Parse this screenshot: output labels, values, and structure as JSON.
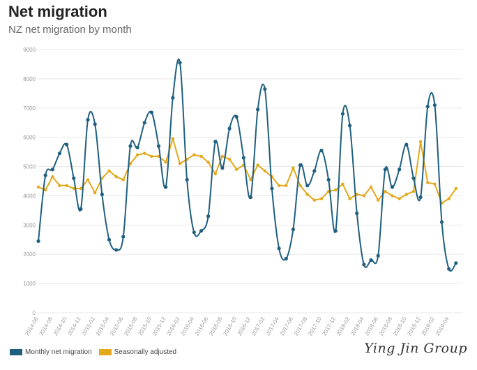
{
  "chart_data": {
    "type": "line",
    "title": "Net migration",
    "subtitle": "NZ net migration by month",
    "ylim": [
      0,
      9000
    ],
    "y_ticks": [
      0,
      1000,
      2000,
      3000,
      4000,
      5000,
      6000,
      7000,
      8000,
      9000
    ],
    "x_tick_labels": [
      "2014-06",
      "2014-08",
      "2014-10",
      "2014-12",
      "2015-02",
      "2015-04",
      "2015-06",
      "2015-08",
      "2015-10",
      "2015-12",
      "2016-02",
      "2016-04",
      "2016-06",
      "2016-08",
      "2016-10",
      "2016-12",
      "2017-02",
      "2017-04",
      "2017-06",
      "2017-08",
      "2017-10",
      "2017-12",
      "2018-02",
      "2018-04",
      "2018-06",
      "2018-08",
      "2018-10",
      "2018-12",
      "2019-02",
      "2019-04"
    ],
    "x": [
      "2014-06",
      "2014-07",
      "2014-08",
      "2014-09",
      "2014-10",
      "2014-11",
      "2014-12",
      "2015-01",
      "2015-02",
      "2015-03",
      "2015-04",
      "2015-05",
      "2015-06",
      "2015-07",
      "2015-08",
      "2015-09",
      "2015-10",
      "2015-11",
      "2015-12",
      "2016-01",
      "2016-02",
      "2016-03",
      "2016-04",
      "2016-05",
      "2016-06",
      "2016-07",
      "2016-08",
      "2016-09",
      "2016-10",
      "2016-11",
      "2016-12",
      "2017-01",
      "2017-02",
      "2017-03",
      "2017-04",
      "2017-05",
      "2017-06",
      "2017-07",
      "2017-08",
      "2017-09",
      "2017-10",
      "2017-11",
      "2017-12",
      "2018-01",
      "2018-02",
      "2018-03",
      "2018-04",
      "2018-05",
      "2018-06",
      "2018-07",
      "2018-08",
      "2018-09",
      "2018-10",
      "2018-11",
      "2018-12",
      "2019-01",
      "2019-02",
      "2019-03",
      "2019-04",
      "2019-05",
      "2019-06"
    ],
    "series": [
      {
        "name": "Monthly net migration",
        "color": "#1f5f7f",
        "values": [
          2450,
          4700,
          4900,
          5450,
          5750,
          4600,
          3550,
          6600,
          6450,
          4050,
          2500,
          2150,
          2600,
          5700,
          5650,
          6500,
          6850,
          5700,
          4300,
          7350,
          8550,
          4550,
          2750,
          2800,
          3300,
          5850,
          4950,
          6300,
          6700,
          5300,
          3950,
          6950,
          7650,
          4250,
          2200,
          1850,
          2850,
          5050,
          4350,
          4850,
          5550,
          4550,
          2800,
          6800,
          6400,
          3400,
          1650,
          1800,
          1950,
          4900,
          4300,
          4900,
          5750,
          4600,
          3950,
          7050,
          7100,
          3100,
          1500,
          1700,
          null
        ]
      },
      {
        "name": "Seasonally adjusted",
        "color": "#e3a91b",
        "values": [
          4300,
          4200,
          4650,
          4350,
          4350,
          4250,
          4250,
          4550,
          4100,
          4600,
          4850,
          4650,
          4550,
          5100,
          5400,
          5450,
          5350,
          5350,
          5150,
          5950,
          5100,
          5250,
          5400,
          5350,
          5150,
          4750,
          5350,
          5250,
          4900,
          5050,
          4550,
          5050,
          4850,
          4650,
          4350,
          4350,
          4950,
          4350,
          4050,
          3850,
          3900,
          4150,
          4200,
          4400,
          3900,
          4050,
          4000,
          4300,
          3850,
          4150,
          4000,
          3900,
          4050,
          4150,
          5850,
          4450,
          4400,
          3750,
          3900,
          4250,
          null
        ]
      }
    ],
    "grid": true,
    "legend": "bottom-left"
  },
  "watermark": "Ying Jin Group"
}
